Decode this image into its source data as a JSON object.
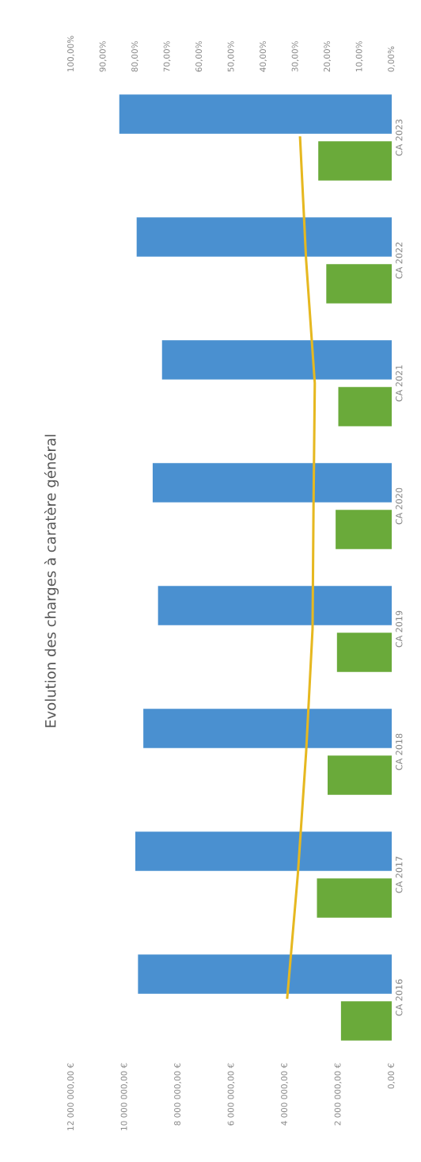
{
  "chart_data": {
    "type": "bar",
    "orientation": "horizontal",
    "title": "Evolution des charges à caratère général",
    "categories": [
      "CA 2023",
      "CA 2022",
      "CA 2021",
      "CA 2020",
      "CA 2019",
      "CA 2018",
      "CA 2017",
      "CA 2016"
    ],
    "series": [
      {
        "color": "#4a90d0",
        "values": [
          10200000,
          9550000,
          8600000,
          8950000,
          8750000,
          9300000,
          9600000,
          9500000
        ]
      },
      {
        "color": "#6aaa3a",
        "values": [
          2750000,
          2450000,
          2000000,
          2100000,
          2050000,
          2400000,
          2800000,
          1900000
        ]
      },
      {
        "type": "line",
        "axis": "x2",
        "color": "#e6b820",
        "values": [
          28.6,
          26.7,
          24,
          24.4,
          24.7,
          26.7,
          29.3,
          32.6
        ]
      }
    ],
    "xlim": [
      12000000,
      0
    ],
    "xticks": [
      {
        "value": 12000000,
        "label": "12 000 000,00 €"
      },
      {
        "value": 10000000,
        "label": "10 000 000,00 €"
      },
      {
        "value": 8000000,
        "label": "8 000 000,00 €"
      },
      {
        "value": 6000000,
        "label": "6 000 000,00 €"
      },
      {
        "value": 4000000,
        "label": "4 000 000,00 €"
      },
      {
        "value": 2000000,
        "label": "2 000 000,00 €"
      },
      {
        "value": 0,
        "label": "0,00 €"
      }
    ],
    "x2lim": [
      100,
      0
    ],
    "x2ticks": [
      {
        "value": 100,
        "label": "100,00%"
      },
      {
        "value": 90,
        "label": "90,00%"
      },
      {
        "value": 80,
        "label": "80,00%"
      },
      {
        "value": 70,
        "label": "70,00%"
      },
      {
        "value": 60,
        "label": "60,00%"
      },
      {
        "value": 50,
        "label": "50,00%"
      },
      {
        "value": 40,
        "label": "40,00%"
      },
      {
        "value": 30,
        "label": "30,00%"
      },
      {
        "value": 20,
        "label": "20,00%"
      },
      {
        "value": 10,
        "label": "10,00%"
      },
      {
        "value": 0,
        "label": "0,00%"
      }
    ],
    "grid": false,
    "legend": false,
    "marker": "none",
    "line_style": "solid"
  }
}
